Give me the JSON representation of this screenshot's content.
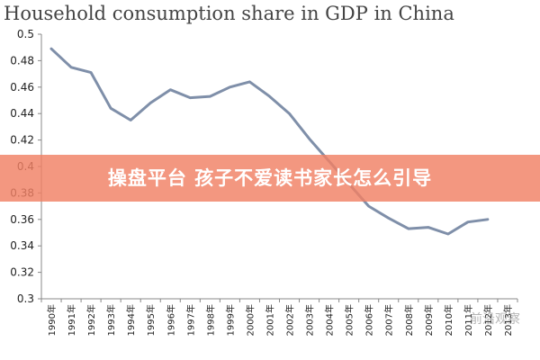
{
  "chart_data": {
    "type": "line",
    "title": "Household consumption share in GDP in China",
    "categories": [
      "1990年",
      "1991年",
      "1992年",
      "1993年",
      "1994年",
      "1995年",
      "1996年",
      "1997年",
      "1998年",
      "1999年",
      "2000年",
      "2001年",
      "2002年",
      "2003年",
      "2004年",
      "2005年",
      "2006年",
      "2007年",
      "2008年",
      "2009年",
      "2010年",
      "2011年",
      "2012年",
      "2013年"
    ],
    "series": [
      {
        "values": [
          0.489,
          0.475,
          0.471,
          0.444,
          0.435,
          0.448,
          0.458,
          0.452,
          0.453,
          0.46,
          0.464,
          0.453,
          0.44,
          0.421,
          0.404,
          0.387,
          0.37,
          0.361,
          0.353,
          0.354,
          0.349,
          0.358,
          0.36,
          null
        ]
      }
    ],
    "ylim": [
      0.3,
      0.5
    ],
    "yticks": [
      "0.5",
      "0.48",
      "0.46",
      "0.44",
      "0.42",
      "0.4",
      "0.38",
      "0.36",
      "0.34",
      "0.32",
      "0.3"
    ],
    "grid": false,
    "line_color": "#7f8fa9"
  },
  "banner": {
    "text": "操盘平台 孩子不爱读书家长怎么引导"
  },
  "watermark": {
    "text": "前沿观察"
  }
}
